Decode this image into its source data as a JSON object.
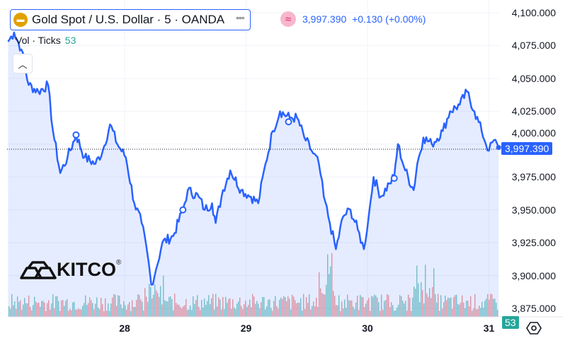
{
  "legend": {
    "symbol": "Gold Spot / U.S. Dollar · 5 · OANDA",
    "more_icon": "°°°",
    "approx_icon": "≈",
    "last": "3,997.390",
    "change": "+0.130 (+0.00%)"
  },
  "volume": {
    "label": "Vol · Ticks",
    "value": "53"
  },
  "yaxis": [
    "4,100.000",
    "4,075.000",
    "4,050.000",
    "4,025.000",
    "4,000.000",
    "3,975.000",
    "3,950.000",
    "3,925.000",
    "3,900.000",
    "3,875.000"
  ],
  "xaxis": [
    "28",
    "29",
    "30",
    "31"
  ],
  "price_label": "3,997.390",
  "volume_label": "53",
  "logo": "KITCO",
  "colors": {
    "line": "#2962ff",
    "up": "#26a69a",
    "down": "#ef5350"
  },
  "chart_data": {
    "type": "line",
    "ylim": [
      3875,
      4100
    ],
    "xlim": [
      27.0,
      31.1
    ],
    "last_price": 3997.39,
    "points": [
      [
        27.04,
        4078
      ],
      [
        27.09,
        4085
      ],
      [
        27.15,
        4072
      ],
      [
        27.21,
        4045
      ],
      [
        27.29,
        4040
      ],
      [
        27.37,
        4045
      ],
      [
        27.41,
        4010
      ],
      [
        27.47,
        3978
      ],
      [
        27.53,
        3990
      ],
      [
        27.6,
        4007
      ],
      [
        27.67,
        3990
      ],
      [
        27.76,
        3985
      ],
      [
        27.82,
        3995
      ],
      [
        27.88,
        4015
      ],
      [
        27.94,
        4000
      ],
      [
        28.01,
        3990
      ],
      [
        28.08,
        3955
      ],
      [
        28.14,
        3940
      ],
      [
        28.19,
        3915
      ],
      [
        28.22,
        3893
      ],
      [
        28.26,
        3905
      ],
      [
        28.31,
        3925
      ],
      [
        28.4,
        3930
      ],
      [
        28.48,
        3950
      ],
      [
        28.52,
        3965
      ],
      [
        28.61,
        3960
      ],
      [
        28.66,
        3950
      ],
      [
        28.72,
        3955
      ],
      [
        28.75,
        3940
      ],
      [
        28.81,
        3965
      ],
      [
        28.87,
        3980
      ],
      [
        28.96,
        3965
      ],
      [
        29.04,
        3960
      ],
      [
        29.1,
        3955
      ],
      [
        29.16,
        3985
      ],
      [
        29.22,
        4010
      ],
      [
        29.28,
        4025
      ],
      [
        29.36,
        4020
      ],
      [
        29.42,
        4020
      ],
      [
        29.48,
        4005
      ],
      [
        29.54,
        3995
      ],
      [
        29.6,
        3985
      ],
      [
        29.64,
        3960
      ],
      [
        29.69,
        3940
      ],
      [
        29.74,
        3920
      ],
      [
        29.8,
        3945
      ],
      [
        29.86,
        3950
      ],
      [
        29.92,
        3935
      ],
      [
        29.97,
        3920
      ],
      [
        30.01,
        3945
      ],
      [
        30.05,
        3975
      ],
      [
        30.11,
        3960
      ],
      [
        30.18,
        3970
      ],
      [
        30.22,
        3975
      ],
      [
        30.25,
        4000
      ],
      [
        30.31,
        3980
      ],
      [
        30.38,
        3965
      ],
      [
        30.41,
        3985
      ],
      [
        30.46,
        4005
      ],
      [
        30.53,
        4000
      ],
      [
        30.62,
        4010
      ],
      [
        30.68,
        4025
      ],
      [
        30.76,
        4030
      ],
      [
        30.82,
        4040
      ],
      [
        30.88,
        4025
      ],
      [
        30.94,
        4010
      ],
      [
        31.0,
        3995
      ],
      [
        31.04,
        4003
      ],
      [
        31.08,
        3997
      ]
    ],
    "markers": [
      [
        27.6,
        4007
      ],
      [
        28.48,
        3950
      ],
      [
        29.35,
        4017
      ],
      [
        30.22,
        3974
      ]
    ]
  }
}
